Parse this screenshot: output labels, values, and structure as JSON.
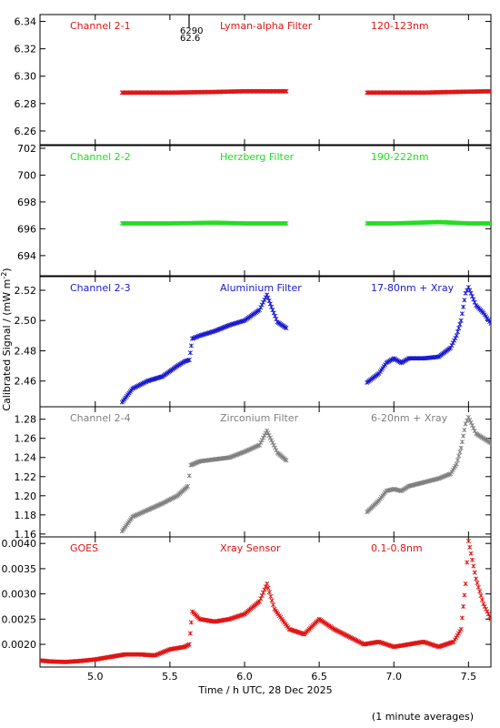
{
  "xlabel": "Time / h UTC, 28 Dec 2025",
  "ylabel": "Calibrated Signal / (mW m",
  "ylabel_sup": "-2",
  "ylabel_close": ")",
  "footnote": "(1 minute averages)",
  "colors": {
    "axis": "#000000",
    "red": "#e01515",
    "green": "#22dd22",
    "blue": "#1a1ad0",
    "gray": "#808080"
  },
  "chart_data": {
    "type": "scatter",
    "xlim": [
      4.63,
      7.65
    ],
    "xticks": [
      "5.0",
      "5.5",
      "6.0",
      "6.5",
      "7.0",
      "7.5"
    ],
    "xtick_values": [
      5.0,
      5.5,
      6.0,
      6.5,
      7.0,
      7.5
    ],
    "marker_note": "6290 62.6",
    "panels": [
      {
        "channel": "Channel 2-1",
        "filter": "Lyman-alpha Filter",
        "band": "120-123nm",
        "color": "#e01515",
        "ylim": [
          6.25,
          6.345
        ],
        "yticks": [
          "6.26",
          "6.28",
          "6.30",
          "6.32",
          "6.34"
        ],
        "ytick_values": [
          6.26,
          6.28,
          6.3,
          6.32,
          6.34
        ],
        "series": [
          {
            "x": [
              5.18,
              5.5,
              5.8,
              6.0,
              6.28
            ],
            "y": [
              6.288,
              6.288,
              6.2885,
              6.289,
              6.289
            ]
          },
          {
            "x": [
              6.82,
              7.0,
              7.2,
              7.4,
              7.65
            ],
            "y": [
              6.288,
              6.288,
              6.288,
              6.2885,
              6.289
            ]
          }
        ]
      },
      {
        "channel": "Channel 2-2",
        "filter": "Herzberg Filter",
        "band": "190-222nm",
        "color": "#22dd22",
        "ylim": [
          692.5,
          702.2
        ],
        "yticks": [
          "694",
          "696",
          "698",
          "700",
          "702"
        ],
        "ytick_values": [
          694,
          696,
          698,
          700,
          702
        ],
        "series": [
          {
            "x": [
              5.18,
              5.5,
              5.8,
              6.0,
              6.28
            ],
            "y": [
              696.4,
              696.4,
              696.45,
              696.4,
              696.4
            ]
          },
          {
            "x": [
              6.82,
              7.0,
              7.3,
              7.5,
              7.65
            ],
            "y": [
              696.4,
              696.4,
              696.5,
              696.4,
              696.4
            ]
          }
        ]
      },
      {
        "channel": "Channel 2-3",
        "filter": "Aluminium Filter",
        "band": "17-80nm + Xray",
        "color": "#1a1ad0",
        "ylim": [
          2.443,
          2.529
        ],
        "yticks": [
          "2.46",
          "2.48",
          "2.50",
          "2.52"
        ],
        "ytick_values": [
          2.46,
          2.48,
          2.5,
          2.52
        ],
        "series": [
          {
            "x": [
              5.18,
              5.25,
              5.35,
              5.45,
              5.55,
              5.6,
              5.63,
              5.65,
              5.7,
              5.8,
              5.9,
              6.0,
              6.1,
              6.15,
              6.18,
              6.22,
              6.28
            ],
            "y": [
              2.446,
              2.455,
              2.46,
              2.463,
              2.47,
              2.473,
              2.474,
              2.488,
              2.49,
              2.493,
              2.497,
              2.5,
              2.507,
              2.517,
              2.509,
              2.499,
              2.495
            ]
          },
          {
            "x": [
              6.82,
              6.9,
              6.95,
              7.0,
              7.05,
              7.1,
              7.2,
              7.3,
              7.38,
              7.42,
              7.45,
              7.48,
              7.5,
              7.55,
              7.6,
              7.65
            ],
            "y": [
              2.459,
              2.465,
              2.472,
              2.475,
              2.472,
              2.475,
              2.475,
              2.476,
              2.482,
              2.49,
              2.5,
              2.518,
              2.522,
              2.51,
              2.505,
              2.498
            ]
          }
        ]
      },
      {
        "channel": "Channel 2-4",
        "filter": "Zirconium Filter",
        "band": "6-20nm + Xray",
        "color": "#808080",
        "ylim": [
          1.157,
          1.293
        ],
        "yticks": [
          "1.16",
          "1.18",
          "1.20",
          "1.22",
          "1.24",
          "1.26",
          "1.28"
        ],
        "ytick_values": [
          1.16,
          1.18,
          1.2,
          1.22,
          1.24,
          1.26,
          1.28
        ],
        "series": [
          {
            "x": [
              5.18,
              5.25,
              5.35,
              5.45,
              5.55,
              5.62,
              5.64,
              5.7,
              5.8,
              5.9,
              6.0,
              6.1,
              6.15,
              6.18,
              6.22,
              6.28
            ],
            "y": [
              1.163,
              1.178,
              1.185,
              1.192,
              1.2,
              1.21,
              1.232,
              1.236,
              1.238,
              1.24,
              1.246,
              1.253,
              1.268,
              1.258,
              1.245,
              1.237
            ]
          },
          {
            "x": [
              6.82,
              6.9,
              6.95,
              7.0,
              7.05,
              7.1,
              7.2,
              7.3,
              7.38,
              7.42,
              7.45,
              7.48,
              7.5,
              7.55,
              7.6,
              7.65
            ],
            "y": [
              1.183,
              1.195,
              1.205,
              1.207,
              1.205,
              1.21,
              1.214,
              1.218,
              1.223,
              1.233,
              1.25,
              1.275,
              1.282,
              1.265,
              1.26,
              1.255
            ]
          }
        ]
      },
      {
        "channel": "GOES",
        "filter": "Xray Sensor",
        "band": "0.1-0.8nm",
        "color": "#e01515",
        "ylim": [
          0.00155,
          0.00413
        ],
        "yticks": [
          "0.0020",
          "0.0025",
          "0.0030",
          "0.0035",
          "0.0040"
        ],
        "ytick_values": [
          0.002,
          0.0025,
          0.003,
          0.0035,
          0.004
        ],
        "series": [
          {
            "x": [
              4.63,
              4.7,
              4.8,
              4.9,
              5.0,
              5.1,
              5.2,
              5.3,
              5.4,
              5.5,
              5.6,
              5.63,
              5.65,
              5.7,
              5.8,
              5.9,
              6.0,
              6.1,
              6.15,
              6.2,
              6.3,
              6.4,
              6.5,
              6.6,
              6.7,
              6.8,
              6.9,
              7.0,
              7.1,
              7.2,
              7.3,
              7.4,
              7.45,
              7.48,
              7.5,
              7.55,
              7.6,
              7.65
            ],
            "y": [
              0.00168,
              0.00166,
              0.00165,
              0.00167,
              0.0017,
              0.00175,
              0.0018,
              0.0018,
              0.00178,
              0.0019,
              0.00195,
              0.002,
              0.00265,
              0.0025,
              0.00245,
              0.0025,
              0.0026,
              0.00285,
              0.0032,
              0.0027,
              0.0023,
              0.0022,
              0.0025,
              0.0023,
              0.00215,
              0.002,
              0.00205,
              0.00195,
              0.002,
              0.00205,
              0.00195,
              0.00205,
              0.0023,
              0.0032,
              0.00405,
              0.0033,
              0.0028,
              0.0025
            ]
          }
        ]
      }
    ]
  }
}
